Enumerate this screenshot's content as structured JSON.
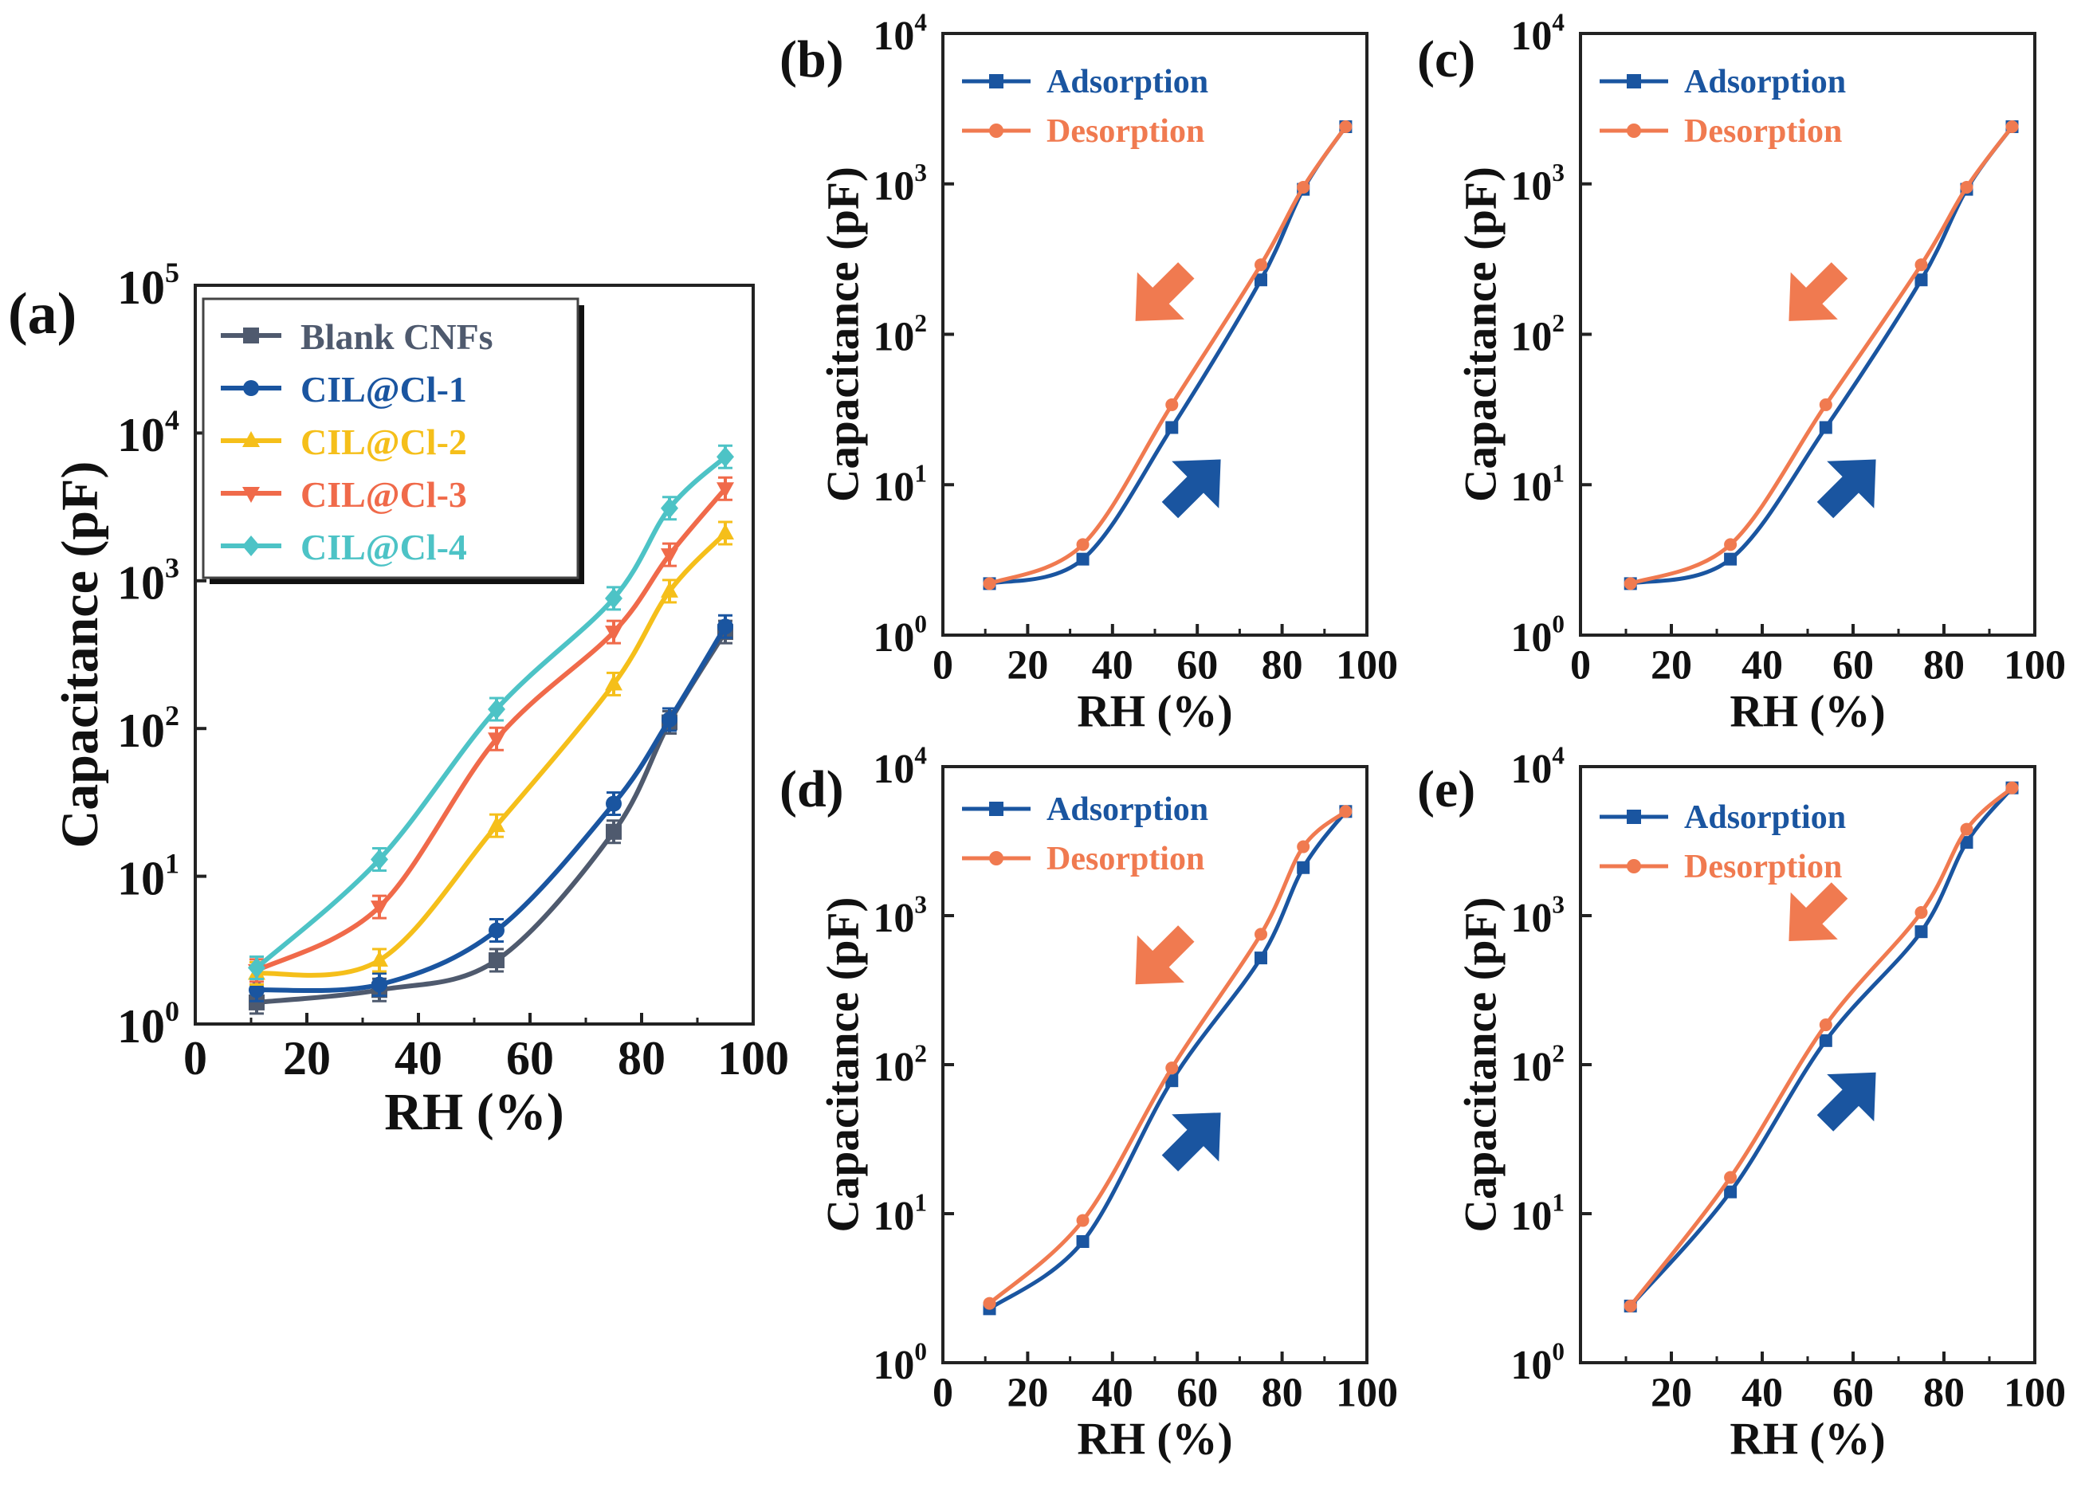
{
  "chart_data": [
    {
      "id": "a",
      "panel_label": "(a)",
      "type": "line",
      "yscale": "log",
      "xlabel": "RH (%)",
      "ylabel": "Capacitance (pF)",
      "xlim": [
        0,
        100
      ],
      "ylim": [
        1,
        100000
      ],
      "xticks": [
        "0",
        "20",
        "40",
        "60",
        "80",
        "100"
      ],
      "yticks": [
        {
          "base": "10",
          "exp": "0"
        },
        {
          "base": "10",
          "exp": "1"
        },
        {
          "base": "10",
          "exp": "2"
        },
        {
          "base": "10",
          "exp": "3"
        },
        {
          "base": "10",
          "exp": "4"
        },
        {
          "base": "10",
          "exp": "5"
        }
      ],
      "legend_position": "upper-left",
      "x": [
        11,
        33,
        54,
        75,
        85,
        95
      ],
      "series": [
        {
          "name": "Blank CNFs",
          "color": "#4f5a6e",
          "marker": "square",
          "values": [
            1.4,
            1.7,
            2.7,
            20,
            110,
            450
          ]
        },
        {
          "name": "CIL@Cl-1",
          "color": "#1a55a0",
          "marker": "circle",
          "values": [
            1.7,
            1.85,
            4.3,
            31,
            115,
            490
          ]
        },
        {
          "name": "CIL@Cl-2",
          "color": "#f5bf1a",
          "marker": "triangle-up",
          "values": [
            2.2,
            2.7,
            22,
            200,
            850,
            2100
          ]
        },
        {
          "name": "CIL@Cl-3",
          "color": "#f06a4a",
          "marker": "triangle-down",
          "values": [
            2.3,
            6.2,
            85,
            450,
            1500,
            4200
          ]
        },
        {
          "name": "CIL@Cl-4",
          "color": "#4dc3c6",
          "marker": "diamond",
          "values": [
            2.4,
            13,
            135,
            760,
            3100,
            6900
          ]
        }
      ]
    },
    {
      "id": "b",
      "panel_label": "(b)",
      "type": "line",
      "yscale": "log",
      "xlabel": "RH (%)",
      "ylabel": "Capacitance (pF)",
      "xlim": [
        0,
        100
      ],
      "ylim": [
        1,
        10000
      ],
      "xticks": [
        "0",
        "20",
        "40",
        "60",
        "80",
        "100"
      ],
      "yticks": [
        {
          "base": "10",
          "exp": "0"
        },
        {
          "base": "10",
          "exp": "1"
        },
        {
          "base": "10",
          "exp": "2"
        },
        {
          "base": "10",
          "exp": "3"
        },
        {
          "base": "10",
          "exp": "4"
        }
      ],
      "legend_position": "upper-left",
      "x": [
        11,
        33,
        54,
        75,
        85,
        95
      ],
      "series": [
        {
          "name": "Adsorption",
          "color": "#1a55a0",
          "marker": "square",
          "values": [
            2.2,
            3.2,
            24,
            230,
            920,
            2400
          ]
        },
        {
          "name": "Desorption",
          "color": "#f07a50",
          "marker": "circle",
          "values": [
            2.2,
            4.0,
            34,
            290,
            950,
            2400
          ]
        }
      ],
      "annotations": [
        "down-left arrow (desorption)",
        "up-right arrow (adsorption)"
      ]
    },
    {
      "id": "c",
      "panel_label": "(c)",
      "type": "line",
      "yscale": "log",
      "xlabel": "RH (%)",
      "ylabel": "Capacitance (pF)",
      "xlim": [
        0,
        100
      ],
      "ylim": [
        1,
        10000
      ],
      "xticks": [
        "0",
        "20",
        "40",
        "60",
        "80",
        "100"
      ],
      "yticks": [
        {
          "base": "10",
          "exp": "0"
        },
        {
          "base": "10",
          "exp": "1"
        },
        {
          "base": "10",
          "exp": "2"
        },
        {
          "base": "10",
          "exp": "3"
        },
        {
          "base": "10",
          "exp": "4"
        }
      ],
      "legend_position": "upper-left",
      "x": [
        11,
        33,
        54,
        75,
        85,
        95
      ],
      "series": [
        {
          "name": "Adsorption",
          "color": "#1a55a0",
          "marker": "square",
          "values": [
            2.2,
            3.2,
            24,
            230,
            920,
            2400
          ]
        },
        {
          "name": "Desorption",
          "color": "#f07a50",
          "marker": "circle",
          "values": [
            2.2,
            4.0,
            34,
            290,
            950,
            2400
          ]
        }
      ],
      "annotations": [
        "down-left arrow (desorption)",
        "up-right arrow (adsorption)"
      ]
    },
    {
      "id": "d",
      "panel_label": "(d)",
      "type": "line",
      "yscale": "log",
      "xlabel": "RH (%)",
      "ylabel": "Capacitance (pF)",
      "xlim": [
        0,
        100
      ],
      "ylim": [
        1,
        10000
      ],
      "xticks": [
        "0",
        "20",
        "40",
        "60",
        "80",
        "100"
      ],
      "yticks": [
        {
          "base": "10",
          "exp": "0"
        },
        {
          "base": "10",
          "exp": "1"
        },
        {
          "base": "10",
          "exp": "2"
        },
        {
          "base": "10",
          "exp": "3"
        },
        {
          "base": "10",
          "exp": "4"
        }
      ],
      "legend_position": "upper-left",
      "x": [
        11,
        33,
        54,
        75,
        85,
        95
      ],
      "series": [
        {
          "name": "Adsorption",
          "color": "#1a55a0",
          "marker": "square",
          "values": [
            2.3,
            6.5,
            78,
            520,
            2100,
            5000
          ]
        },
        {
          "name": "Desorption",
          "color": "#f07a50",
          "marker": "circle",
          "values": [
            2.5,
            9.0,
            95,
            750,
            2900,
            5000
          ]
        }
      ],
      "annotations": [
        "down-left arrow (desorption)",
        "up-right arrow (adsorption)"
      ]
    },
    {
      "id": "e",
      "panel_label": "(e)",
      "type": "line",
      "yscale": "log",
      "xlabel": "RH (%)",
      "ylabel": "Capacitance (pF)",
      "xlim": [
        0,
        100
      ],
      "ylim": [
        1,
        10000
      ],
      "xticks": [
        "20",
        "40",
        "60",
        "80",
        "100"
      ],
      "yticks": [
        {
          "base": "10",
          "exp": "0"
        },
        {
          "base": "10",
          "exp": "1"
        },
        {
          "base": "10",
          "exp": "2"
        },
        {
          "base": "10",
          "exp": "3"
        },
        {
          "base": "10",
          "exp": "4"
        }
      ],
      "legend_position": "upper-left",
      "x": [
        11,
        33,
        54,
        75,
        85,
        95
      ],
      "series": [
        {
          "name": "Adsorption",
          "color": "#1a55a0",
          "marker": "square",
          "values": [
            2.4,
            14,
            145,
            780,
            3100,
            7200
          ]
        },
        {
          "name": "Desorption",
          "color": "#f07a50",
          "marker": "circle",
          "values": [
            2.4,
            17.5,
            185,
            1050,
            3800,
            7200
          ]
        }
      ],
      "annotations": [
        "down-left arrow (desorption)",
        "up-right arrow (adsorption)"
      ]
    }
  ]
}
